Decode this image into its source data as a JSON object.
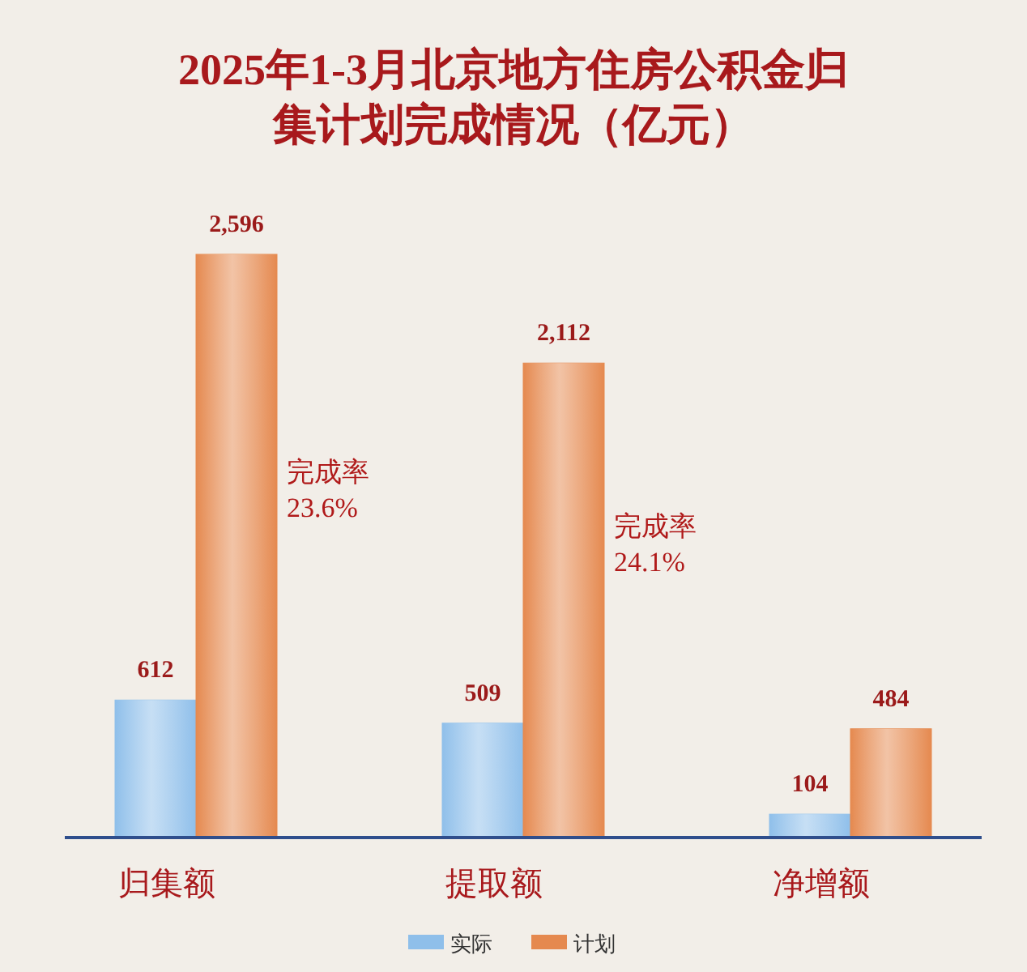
{
  "chart_data": {
    "type": "bar",
    "title": "2025年1-3月北京地方住房公积金归集计划完成情况（亿元）",
    "categories": [
      "归集额",
      "提取额",
      "净增额"
    ],
    "series": [
      {
        "name": "实际",
        "color": "#8fbfea",
        "values": [
          612,
          509,
          104
        ],
        "value_labels": [
          "612",
          "509",
          "104"
        ]
      },
      {
        "name": "计划",
        "color": "#e5894f",
        "values": [
          2596,
          2112,
          484
        ],
        "value_labels": [
          "2,596",
          "2,112",
          "484"
        ]
      }
    ],
    "annotations": [
      "完成率 23.6%",
      "完成率 24.1%"
    ],
    "legend": "bottom",
    "grid": false
  }
}
